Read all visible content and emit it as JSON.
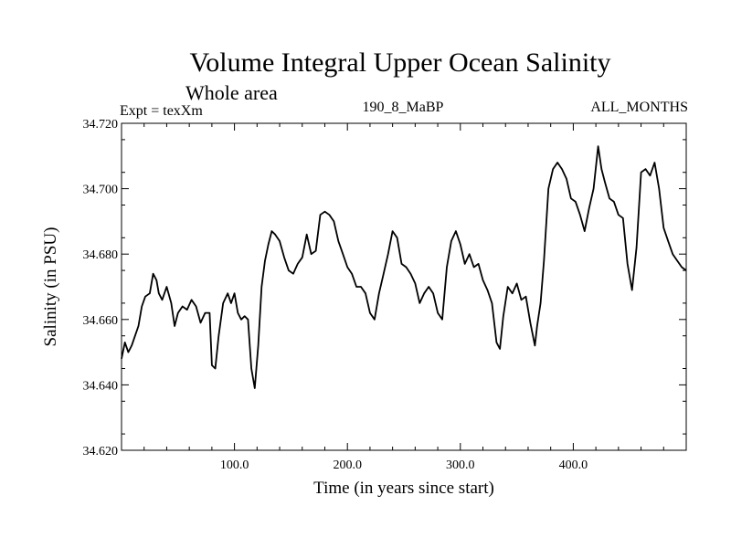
{
  "colors": {
    "line": "#000000",
    "background": "#ffffff",
    "axis": "#000000"
  },
  "chart_data": {
    "type": "line",
    "title": "Volume Integral Upper Ocean Salinity",
    "subtitle": "Whole area",
    "header_left": "Expt = texXm",
    "header_center": "190_8_MaBP",
    "header_right": "ALL_MONTHS",
    "xlabel": "Time (in years since start)",
    "ylabel": "Salinity (in PSU)",
    "xlim": [
      0,
      500
    ],
    "ylim": [
      34.62,
      34.72
    ],
    "x_ticks": [
      100,
      200,
      300,
      400
    ],
    "x_tick_labels": [
      "100.0",
      "200.0",
      "300.0",
      "400.0"
    ],
    "y_ticks": [
      34.62,
      34.64,
      34.66,
      34.68,
      34.7,
      34.72
    ],
    "y_tick_labels": [
      "34.620",
      "34.640",
      "34.660",
      "34.680",
      "34.700",
      "34.720"
    ],
    "grid": false,
    "series": [
      {
        "name": "Salinity",
        "x": [
          0,
          3,
          6,
          9,
          12,
          15,
          18,
          21,
          25,
          28,
          31,
          33,
          36,
          40,
          44,
          47,
          50,
          54,
          58,
          62,
          66,
          70,
          74,
          78,
          80,
          83,
          86,
          90,
          94,
          97,
          100,
          103,
          106,
          109,
          112,
          115,
          118,
          121,
          124,
          127,
          130,
          133,
          136,
          140,
          144,
          148,
          152,
          156,
          160,
          164,
          168,
          172,
          176,
          180,
          184,
          188,
          192,
          196,
          200,
          204,
          208,
          212,
          216,
          220,
          224,
          228,
          232,
          236,
          240,
          244,
          248,
          252,
          256,
          260,
          264,
          268,
          272,
          276,
          280,
          284,
          288,
          292,
          296,
          300,
          304,
          308,
          312,
          316,
          320,
          324,
          328,
          332,
          335,
          338,
          342,
          346,
          350,
          354,
          358,
          362,
          366,
          368,
          371,
          374,
          378,
          382,
          386,
          390,
          394,
          398,
          402,
          406,
          410,
          414,
          418,
          422,
          425,
          428,
          432,
          436,
          440,
          444,
          448,
          452,
          456,
          460,
          464,
          468,
          472,
          476,
          480,
          484,
          488,
          492,
          496,
          500
        ],
        "values": [
          34.648,
          34.653,
          34.65,
          34.652,
          34.655,
          34.658,
          34.664,
          34.667,
          34.668,
          34.674,
          34.672,
          34.668,
          34.666,
          34.67,
          34.665,
          34.658,
          34.662,
          34.664,
          34.663,
          34.666,
          34.664,
          34.659,
          34.662,
          34.662,
          34.646,
          34.645,
          34.655,
          34.665,
          34.668,
          34.665,
          34.668,
          34.662,
          34.66,
          34.661,
          34.66,
          34.645,
          34.639,
          34.652,
          34.67,
          34.678,
          34.683,
          34.687,
          34.686,
          34.684,
          34.679,
          34.675,
          34.674,
          34.677,
          34.679,
          34.686,
          34.68,
          34.681,
          34.692,
          34.693,
          34.692,
          34.69,
          34.684,
          34.68,
          34.676,
          34.674,
          34.67,
          34.67,
          34.668,
          34.662,
          34.66,
          34.668,
          34.674,
          34.68,
          34.687,
          34.685,
          34.677,
          34.676,
          34.674,
          34.671,
          34.665,
          34.668,
          34.67,
          34.668,
          34.662,
          34.66,
          34.676,
          34.684,
          34.687,
          34.683,
          34.677,
          34.68,
          34.676,
          34.677,
          34.672,
          34.669,
          34.665,
          34.653,
          34.651,
          34.661,
          34.67,
          34.668,
          34.671,
          34.666,
          34.667,
          34.659,
          34.652,
          34.658,
          34.665,
          34.678,
          34.7,
          34.706,
          34.708,
          34.706,
          34.703,
          34.697,
          34.696,
          34.692,
          34.687,
          34.694,
          34.7,
          34.713,
          34.706,
          34.702,
          34.697,
          34.696,
          34.692,
          34.691,
          34.677,
          34.669,
          34.682,
          34.705,
          34.706,
          34.704,
          34.708,
          34.7,
          34.688,
          34.684,
          34.68,
          34.678,
          34.676,
          34.675
        ]
      }
    ]
  }
}
